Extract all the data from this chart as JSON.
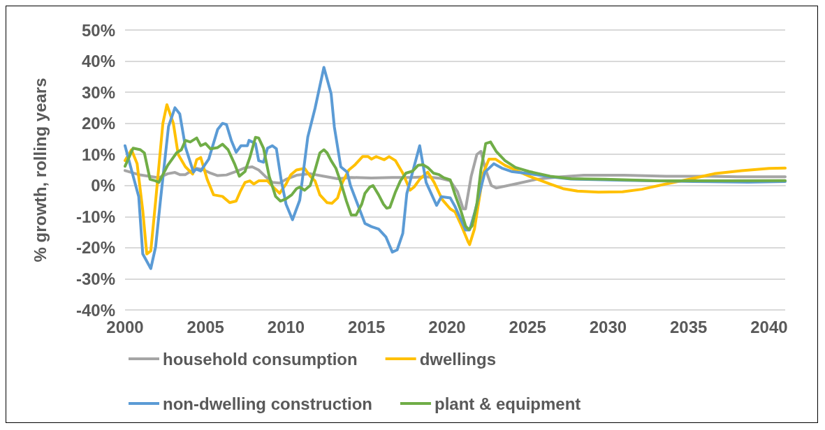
{
  "chart_data": {
    "type": "line",
    "ylabel": "% growth, rolling years",
    "xlim": [
      2000,
      2041
    ],
    "xticks": [
      2000,
      2005,
      2010,
      2015,
      2020,
      2025,
      2030,
      2035,
      2040
    ],
    "ylim": [
      -40,
      50
    ],
    "yticks": [
      {
        "value": -40,
        "label": "-40%"
      },
      {
        "value": -30,
        "label": "-30%"
      },
      {
        "value": -20,
        "label": "-20%"
      },
      {
        "value": -10,
        "label": "-10%"
      },
      {
        "value": 0,
        "label": "0%"
      },
      {
        "value": 10,
        "label": "10%"
      },
      {
        "value": 20,
        "label": "20%"
      },
      {
        "value": 30,
        "label": "30%"
      },
      {
        "value": 40,
        "label": "40%"
      },
      {
        "value": 50,
        "label": "50%"
      }
    ],
    "grid": "y",
    "legend": "bottom",
    "marker": "none",
    "line_style": "solid",
    "series": [
      {
        "name": "household consumption",
        "color": "#a5a5a5",
        "x": [
          2000,
          2000.85,
          2001.7,
          2002.1,
          2002.65,
          2003.1,
          2003.4,
          2003.75,
          2004.05,
          2004.45,
          2004.9,
          2005.3,
          2005.75,
          2006.3,
          2006.9,
          2007.45,
          2007.9,
          2008.3,
          2008.7,
          2009.15,
          2009.6,
          2010,
          2010.65,
          2011.5,
          2012.35,
          2013.2,
          2014.05,
          2015.3,
          2016.6,
          2017.85,
          2018.7,
          2019.6,
          2020.2,
          2020.65,
          2021,
          2021.15,
          2021.5,
          2021.85,
          2022.1,
          2022.4,
          2022.75,
          2023.05,
          2024.25,
          2025.55,
          2026.8,
          2028.5,
          2031,
          2033.6,
          2036.2,
          2038,
          2041
        ],
        "values": [
          4.8,
          3.5,
          2.8,
          2.5,
          3.8,
          4.2,
          3.5,
          3.5,
          4.5,
          5.5,
          5,
          4,
          3.2,
          3.4,
          4.5,
          5.7,
          6,
          5,
          3,
          1,
          0.8,
          2,
          3.3,
          3.8,
          3,
          2.2,
          2.6,
          2.4,
          2.6,
          2.6,
          2.8,
          2.3,
          1.5,
          -2,
          -7.5,
          -7.5,
          3,
          10,
          11,
          5,
          0,
          -0.8,
          0.5,
          2,
          2.7,
          3.3,
          3.3,
          3,
          3,
          2.8,
          2.8
        ]
      },
      {
        "name": "dwellings",
        "color": "#ffc000",
        "x": [
          2000,
          2000.4,
          2000.75,
          2001.1,
          2001.35,
          2001.6,
          2001.9,
          2002.35,
          2002.6,
          2003,
          2003.3,
          2003.75,
          2004.2,
          2004.45,
          2004.7,
          2005.1,
          2005.5,
          2006.05,
          2006.5,
          2006.9,
          2007.15,
          2007.45,
          2007.75,
          2008,
          2008.3,
          2008.85,
          2009.2,
          2009.6,
          2010,
          2010.3,
          2010.65,
          2011.15,
          2011.5,
          2011.8,
          2012.1,
          2012.55,
          2012.85,
          2013.2,
          2013.5,
          2013.9,
          2014.25,
          2014.75,
          2015.1,
          2015.3,
          2015.6,
          2016.1,
          2016.4,
          2016.8,
          2017.25,
          2017.7,
          2017.95,
          2018.3,
          2018.8,
          2019.2,
          2019.7,
          2020.2,
          2020.5,
          2020.9,
          2021.3,
          2021.4,
          2021.7,
          2022.25,
          2022.6,
          2023,
          2023.6,
          2025.1,
          2026.4,
          2027.2,
          2028.1,
          2029.4,
          2030.9,
          2032.1,
          2033.6,
          2035.3,
          2036.6,
          2038.3,
          2040,
          2041
        ],
        "values": [
          8,
          11.5,
          7,
          -8,
          -22,
          -21,
          -5,
          20,
          26,
          20,
          10,
          6,
          3.7,
          8.3,
          9,
          2,
          -3,
          -3.5,
          -5.5,
          -5,
          -2,
          1,
          1.5,
          0.5,
          1.5,
          1.5,
          -0.5,
          -2.5,
          0.5,
          3.5,
          5,
          5.5,
          3,
          1.5,
          -3,
          -5.5,
          -5.7,
          -4,
          1,
          5,
          6.5,
          9.3,
          9.3,
          8.5,
          9.3,
          8.3,
          9.3,
          8,
          4,
          -1.5,
          -0.5,
          2,
          4.3,
          1,
          -4.5,
          -7.5,
          -8.5,
          -13,
          -18,
          -19,
          -14,
          4,
          8.5,
          8.5,
          6.5,
          3,
          0.5,
          -1,
          -1.8,
          -2.1,
          -2,
          -1.2,
          0.5,
          2.3,
          3.8,
          4.8,
          5.5,
          5.6
        ]
      },
      {
        "name": "non-dwelling construction",
        "color": "#5b9bd5",
        "x": [
          2000,
          2000.4,
          2000.85,
          2001.1,
          2001.6,
          2001.9,
          2002.2,
          2002.7,
          2003.1,
          2003.4,
          2003.75,
          2004.25,
          2004.4,
          2004.7,
          2005.2,
          2005.75,
          2006.05,
          2006.3,
          2006.6,
          2006.9,
          2007.2,
          2007.6,
          2007.7,
          2008.1,
          2008.3,
          2008.6,
          2008.85,
          2009.15,
          2009.4,
          2009.7,
          2010,
          2010.4,
          2010.85,
          2011.35,
          2011.8,
          2012.35,
          2012.8,
          2013,
          2013.4,
          2013.8,
          2014,
          2014.5,
          2014.9,
          2015.3,
          2015.75,
          2016.2,
          2016.6,
          2016.9,
          2017.25,
          2017.5,
          2018.3,
          2018.7,
          2019.35,
          2019.65,
          2020.2,
          2020.5,
          2021.15,
          2021.4,
          2021.7,
          2022.35,
          2022.9,
          2023.4,
          2024,
          2025.1,
          2026.4,
          2027.7,
          2031,
          2035.3,
          2038.7,
          2041
        ],
        "values": [
          12.8,
          5,
          -3.6,
          -22,
          -26.7,
          -19.7,
          -4.7,
          19,
          25,
          23,
          12.4,
          4.3,
          5.3,
          4.7,
          8.5,
          18,
          20,
          19.6,
          14.5,
          10.7,
          12.8,
          12.8,
          14.5,
          13.5,
          8,
          7.5,
          12,
          12.8,
          11.8,
          1.7,
          -6,
          -11,
          -4.7,
          15.6,
          24.8,
          38,
          29.5,
          18.8,
          6,
          4.3,
          0,
          -6.8,
          -12.2,
          -13.2,
          -14,
          -16.5,
          -21.4,
          -20.7,
          -15.4,
          -2.6,
          12.8,
          1,
          -6.4,
          -3.6,
          -4,
          -6.8,
          -14.3,
          -14.3,
          -9,
          4.3,
          7,
          5.6,
          4.5,
          3.8,
          2.8,
          2.1,
          1.7,
          1.3,
          1.1,
          1.3
        ]
      },
      {
        "name": "plant & equipment",
        "color": "#70ad47",
        "x": [
          2000,
          2000.5,
          2000.95,
          2001.2,
          2001.55,
          2001.9,
          2002.1,
          2002.65,
          2003.2,
          2003.5,
          2003.75,
          2004.05,
          2004.45,
          2004.7,
          2005,
          2005.3,
          2005.75,
          2006.05,
          2006.4,
          2006.8,
          2007.1,
          2007.45,
          2007.75,
          2008.1,
          2008.3,
          2008.6,
          2008.95,
          2009.35,
          2009.65,
          2010,
          2010.35,
          2010.65,
          2010.85,
          2011.15,
          2011.5,
          2011.8,
          2012.1,
          2012.35,
          2012.55,
          2012.8,
          2013.1,
          2013.4,
          2013.75,
          2014.05,
          2014.35,
          2014.7,
          2014.9,
          2015.2,
          2015.4,
          2015.75,
          2016.05,
          2016.25,
          2016.45,
          2016.8,
          2017.1,
          2017.45,
          2017.85,
          2018.2,
          2018.5,
          2018.8,
          2019.15,
          2019.5,
          2019.8,
          2020.2,
          2020.5,
          2020.85,
          2021.15,
          2021.35,
          2021.55,
          2021.85,
          2022.1,
          2022.4,
          2022.7,
          2023.05,
          2023.6,
          2024.25,
          2025.1,
          2026.4,
          2027.7,
          2029.8,
          2033.2,
          2037.4,
          2041
        ],
        "values": [
          6.2,
          12,
          11.5,
          10.5,
          2,
          1.5,
          1,
          6.5,
          10.5,
          11.5,
          14.5,
          14,
          15.3,
          12.8,
          13.5,
          11.8,
          12.2,
          13.3,
          11.5,
          7,
          3,
          4.5,
          9,
          15.5,
          15.3,
          12,
          3,
          -3.5,
          -5,
          -4.3,
          -3,
          -1,
          -0.5,
          -1.5,
          0,
          5,
          10.5,
          11.5,
          10.5,
          8,
          5.5,
          1,
          -5,
          -9.5,
          -9.5,
          -6,
          -2.5,
          -0.5,
          0,
          -3,
          -6,
          -7.3,
          -7,
          -2,
          1.5,
          4,
          4.6,
          6.5,
          6.7,
          5.8,
          4,
          3.5,
          2.5,
          1.8,
          -3,
          -8,
          -13,
          -14.2,
          -13,
          -6,
          5,
          13.5,
          14,
          11,
          8,
          5.8,
          4.5,
          3,
          2.2,
          2,
          1.5,
          1.5,
          1.6
        ]
      }
    ]
  }
}
